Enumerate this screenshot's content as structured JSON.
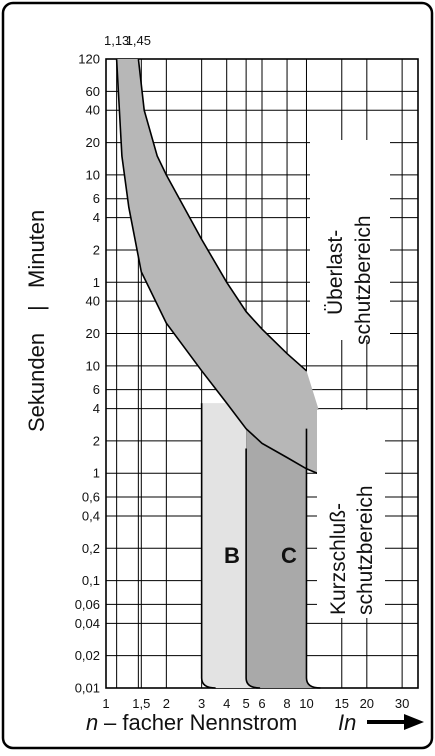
{
  "chart_data": {
    "type": "area",
    "x_scale": "log",
    "x_ticks": [
      1,
      1.5,
      2,
      3,
      4,
      5,
      6,
      8,
      10,
      15,
      20,
      30
    ],
    "x_tick_labels": [
      "1",
      "1,5",
      "2",
      "3",
      "4",
      "5",
      "6",
      "8",
      "10",
      "15",
      "20",
      "30"
    ],
    "top_marks": [
      "1,13",
      "1,45"
    ],
    "top_mark_values": [
      1.13,
      1.45
    ],
    "y_scale": "log",
    "y_ticks_minutes": [
      {
        "value": 1,
        "label": "1"
      },
      {
        "value": 2,
        "label": "2"
      },
      {
        "value": 4,
        "label": "4"
      },
      {
        "value": 6,
        "label": "6"
      },
      {
        "value": 10,
        "label": "10"
      },
      {
        "value": 20,
        "label": "20"
      },
      {
        "value": 40,
        "label": "40"
      },
      {
        "value": 60,
        "label": "60"
      },
      {
        "value": 120,
        "label": "120"
      }
    ],
    "y_ticks_seconds": [
      {
        "value": 0.01,
        "label": "0,01"
      },
      {
        "value": 0.02,
        "label": "0,02"
      },
      {
        "value": 0.04,
        "label": "0,04"
      },
      {
        "value": 0.06,
        "label": "0,06"
      },
      {
        "value": 0.1,
        "label": "0,1"
      },
      {
        "value": 0.2,
        "label": "0,2"
      },
      {
        "value": 0.4,
        "label": "0,4"
      },
      {
        "value": 0.6,
        "label": "0,6"
      },
      {
        "value": 1,
        "label": "1"
      },
      {
        "value": 2,
        "label": "2"
      },
      {
        "value": 4,
        "label": "4"
      },
      {
        "value": 6,
        "label": "6"
      },
      {
        "value": 10,
        "label": "10"
      },
      {
        "value": 20,
        "label": "20"
      },
      {
        "value": 40,
        "label": "40"
      }
    ],
    "ylabel_seconds": "Sekunden",
    "ylabel_separator": "|",
    "ylabel_minutes": "Minuten",
    "xlabel_n": "n",
    "xlabel_text": "– facher Nennstrom",
    "xlabel_in": "In",
    "series": [
      {
        "name": "B",
        "upper_step_ratio": 3,
        "upper_step_max": 5,
        "color": "#e3e3e3"
      },
      {
        "name": "C",
        "upper_step_ratio": 5,
        "upper_step_max": 10,
        "color": "#a9a9a9"
      }
    ],
    "overload_band": {
      "color": "#b7b7b7",
      "lower_curve": [
        [
          1.13,
          7200
        ],
        [
          1.2,
          900
        ],
        [
          1.3,
          300
        ],
        [
          1.5,
          75
        ],
        [
          2,
          25
        ],
        [
          3,
          9
        ],
        [
          4,
          4.5
        ],
        [
          5,
          2.6
        ],
        [
          6,
          1.9
        ],
        [
          8,
          1.4
        ],
        [
          10,
          1.1
        ],
        [
          15,
          0.8
        ]
      ],
      "upper_curve": [
        [
          1.45,
          7200
        ],
        [
          1.55,
          2400
        ],
        [
          1.8,
          900
        ],
        [
          2,
          600
        ],
        [
          3,
          150
        ],
        [
          4,
          60
        ],
        [
          5,
          32
        ],
        [
          6,
          22
        ],
        [
          8,
          13
        ],
        [
          10,
          9
        ]
      ]
    },
    "regions": [
      {
        "line1": "Überlast-",
        "line2": "schutzbereich"
      },
      {
        "line1": "Kurzschluß-",
        "line2": "schutzbereich"
      }
    ],
    "grid": true,
    "arrow_icon": "right-arrow-icon"
  }
}
